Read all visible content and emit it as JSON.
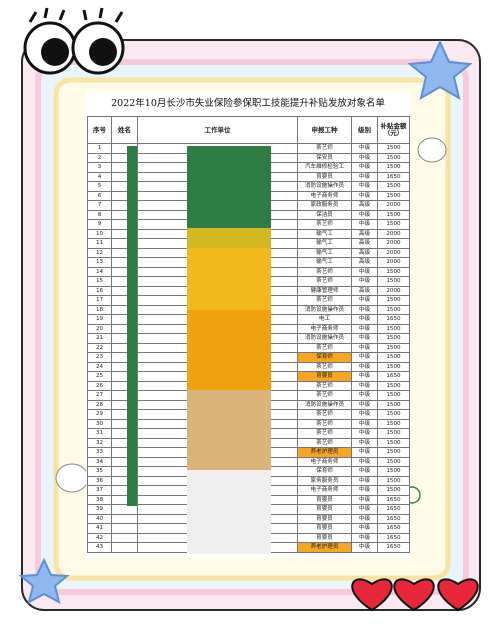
{
  "title": "2022年10月长沙市失业保险参保职工技能提升补贴发放对象名单",
  "headers": [
    "序号",
    "姓名",
    "工作单位",
    "申报工种",
    "级别",
    "补贴金额（元）"
  ],
  "rows": [
    {
      "no": 1,
      "job": "茶艺师",
      "level": "中级",
      "amount": 1500,
      "highlight": false
    },
    {
      "no": 2,
      "job": "保安员",
      "level": "中级",
      "amount": 1500,
      "highlight": false
    },
    {
      "no": 3,
      "job": "汽车维修检验工",
      "level": "中级",
      "amount": 1500,
      "highlight": false
    },
    {
      "no": 4,
      "job": "育婴员",
      "level": "中级",
      "amount": 1650,
      "highlight": false
    },
    {
      "no": 5,
      "job": "消防设施操作员",
      "level": "中级",
      "amount": 1500,
      "highlight": false
    },
    {
      "no": 6,
      "job": "电子商务师",
      "level": "中级",
      "amount": 1500,
      "highlight": false
    },
    {
      "no": 7,
      "job": "家政服务员",
      "level": "高级",
      "amount": 2000,
      "highlight": false
    },
    {
      "no": 8,
      "job": "保洁员",
      "level": "中级",
      "amount": 1500,
      "highlight": false
    },
    {
      "no": 9,
      "job": "茶艺师",
      "level": "中级",
      "amount": 1500,
      "highlight": false
    },
    {
      "no": 10,
      "job": "输气工",
      "level": "高级",
      "amount": 2000,
      "highlight": false
    },
    {
      "no": 11,
      "job": "输气工",
      "level": "高级",
      "amount": 2000,
      "highlight": false
    },
    {
      "no": 12,
      "job": "输气工",
      "level": "高级",
      "amount": 2000,
      "highlight": false
    },
    {
      "no": 13,
      "job": "输气工",
      "level": "高级",
      "amount": 2000,
      "highlight": false
    },
    {
      "no": 14,
      "job": "茶艺师",
      "level": "中级",
      "amount": 1500,
      "highlight": false
    },
    {
      "no": 15,
      "job": "茶艺师",
      "level": "中级",
      "amount": 1500,
      "highlight": false
    },
    {
      "no": 16,
      "job": "健康管理师",
      "level": "高级",
      "amount": 2000,
      "highlight": false
    },
    {
      "no": 17,
      "job": "茶艺师",
      "level": "中级",
      "amount": 1500,
      "highlight": false
    },
    {
      "no": 18,
      "job": "消防设施操作员",
      "level": "中级",
      "amount": 1500,
      "highlight": false
    },
    {
      "no": 19,
      "job": "电工",
      "level": "中级",
      "amount": 1650,
      "highlight": false
    },
    {
      "no": 20,
      "job": "电子商务师",
      "level": "中级",
      "amount": 1500,
      "highlight": false
    },
    {
      "no": 21,
      "job": "消防设施操作员",
      "level": "中级",
      "amount": 1500,
      "highlight": false
    },
    {
      "no": 22,
      "job": "茶艺师",
      "level": "中级",
      "amount": 1500,
      "highlight": false
    },
    {
      "no": 23,
      "job": "保育师",
      "level": "中级",
      "amount": 1500,
      "highlight": true
    },
    {
      "no": 24,
      "job": "茶艺师",
      "level": "中级",
      "amount": 1500,
      "highlight": false
    },
    {
      "no": 25,
      "job": "育婴员",
      "level": "中级",
      "amount": 1650,
      "highlight": true
    },
    {
      "no": 26,
      "job": "茶艺师",
      "level": "中级",
      "amount": 1500,
      "highlight": false
    },
    {
      "no": 27,
      "job": "茶艺师",
      "level": "中级",
      "amount": 1500,
      "highlight": false
    },
    {
      "no": 28,
      "job": "消防设施操作员",
      "level": "中级",
      "amount": 1500,
      "highlight": false
    },
    {
      "no": 29,
      "job": "茶艺师",
      "level": "中级",
      "amount": 1500,
      "highlight": false
    },
    {
      "no": 30,
      "job": "茶艺师",
      "level": "中级",
      "amount": 1500,
      "highlight": false
    },
    {
      "no": 31,
      "job": "茶艺师",
      "level": "中级",
      "amount": 1500,
      "highlight": false
    },
    {
      "no": 32,
      "job": "茶艺师",
      "level": "中级",
      "amount": 1500,
      "highlight": false
    },
    {
      "no": 33,
      "job": "养老护理员",
      "level": "中级",
      "amount": 1500,
      "highlight": true
    },
    {
      "no": 34,
      "job": "电子商务师",
      "level": "中级",
      "amount": 1500,
      "highlight": false
    },
    {
      "no": 35,
      "job": "保育师",
      "level": "中级",
      "amount": 1500,
      "highlight": false
    },
    {
      "no": 36,
      "job": "家务服务员",
      "level": "中级",
      "amount": 1500,
      "highlight": false
    },
    {
      "no": 37,
      "job": "电子商务师",
      "level": "中级",
      "amount": 1500,
      "highlight": false
    },
    {
      "no": 38,
      "job": "育婴员",
      "level": "中级",
      "amount": 1650,
      "highlight": false
    },
    {
      "no": 39,
      "job": "育婴员",
      "level": "中级",
      "amount": 1650,
      "highlight": false
    },
    {
      "no": 40,
      "job": "育婴员",
      "level": "中级",
      "amount": 1650,
      "highlight": false
    },
    {
      "no": 41,
      "job": "育婴员",
      "level": "中级",
      "amount": 1650,
      "highlight": false
    },
    {
      "no": 42,
      "job": "育婴员",
      "level": "中级",
      "amount": 1650,
      "highlight": false
    },
    {
      "no": 43,
      "job": "养老护理员",
      "level": "中级",
      "amount": 1650,
      "highlight": true
    }
  ]
}
